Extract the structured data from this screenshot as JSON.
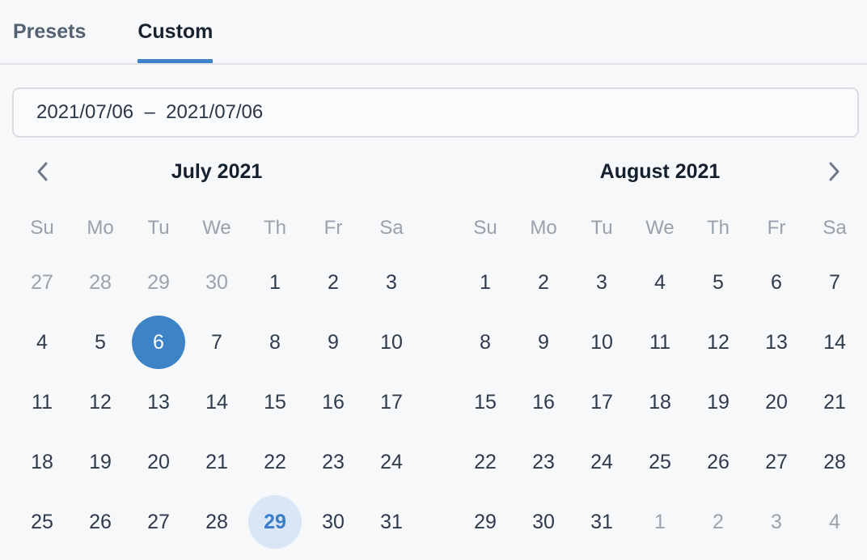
{
  "tabs": [
    {
      "label": "Presets",
      "active": false
    },
    {
      "label": "Custom",
      "active": true
    }
  ],
  "range_input": {
    "value": "2021/07/06  –  2021/07/06"
  },
  "weekdays": [
    "Su",
    "Mo",
    "Tu",
    "We",
    "Th",
    "Fr",
    "Sa"
  ],
  "nav": {
    "prev_icon": "chevron-left",
    "next_icon": "chevron-right"
  },
  "colors": {
    "accent": "#3e82c7",
    "selected_day_bg": "#3e82c7",
    "today_bg": "#d9e6f5",
    "today_text": "#3a7ec9",
    "muted_text": "#9aa3ae"
  },
  "calendars": [
    {
      "title": "July 2021",
      "days": [
        {
          "d": 27,
          "state": "muted"
        },
        {
          "d": 28,
          "state": "muted"
        },
        {
          "d": 29,
          "state": "muted"
        },
        {
          "d": 30,
          "state": "muted"
        },
        {
          "d": 1
        },
        {
          "d": 2
        },
        {
          "d": 3
        },
        {
          "d": 4
        },
        {
          "d": 5
        },
        {
          "d": 6,
          "state": "selected"
        },
        {
          "d": 7
        },
        {
          "d": 8
        },
        {
          "d": 9
        },
        {
          "d": 10
        },
        {
          "d": 11
        },
        {
          "d": 12
        },
        {
          "d": 13
        },
        {
          "d": 14
        },
        {
          "d": 15
        },
        {
          "d": 16
        },
        {
          "d": 17
        },
        {
          "d": 18
        },
        {
          "d": 19
        },
        {
          "d": 20
        },
        {
          "d": 21
        },
        {
          "d": 22
        },
        {
          "d": 23
        },
        {
          "d": 24
        },
        {
          "d": 25
        },
        {
          "d": 26
        },
        {
          "d": 27
        },
        {
          "d": 28
        },
        {
          "d": 29,
          "state": "today"
        },
        {
          "d": 30
        },
        {
          "d": 31
        }
      ]
    },
    {
      "title": "August 2021",
      "days": [
        {
          "d": 1
        },
        {
          "d": 2
        },
        {
          "d": 3
        },
        {
          "d": 4
        },
        {
          "d": 5
        },
        {
          "d": 6
        },
        {
          "d": 7
        },
        {
          "d": 8
        },
        {
          "d": 9
        },
        {
          "d": 10
        },
        {
          "d": 11
        },
        {
          "d": 12
        },
        {
          "d": 13
        },
        {
          "d": 14
        },
        {
          "d": 15
        },
        {
          "d": 16
        },
        {
          "d": 17
        },
        {
          "d": 18
        },
        {
          "d": 19
        },
        {
          "d": 20
        },
        {
          "d": 21
        },
        {
          "d": 22
        },
        {
          "d": 23
        },
        {
          "d": 24
        },
        {
          "d": 25
        },
        {
          "d": 26
        },
        {
          "d": 27
        },
        {
          "d": 28
        },
        {
          "d": 29
        },
        {
          "d": 30
        },
        {
          "d": 31
        },
        {
          "d": 1,
          "state": "muted"
        },
        {
          "d": 2,
          "state": "muted"
        },
        {
          "d": 3,
          "state": "muted"
        },
        {
          "d": 4,
          "state": "muted"
        }
      ]
    }
  ]
}
